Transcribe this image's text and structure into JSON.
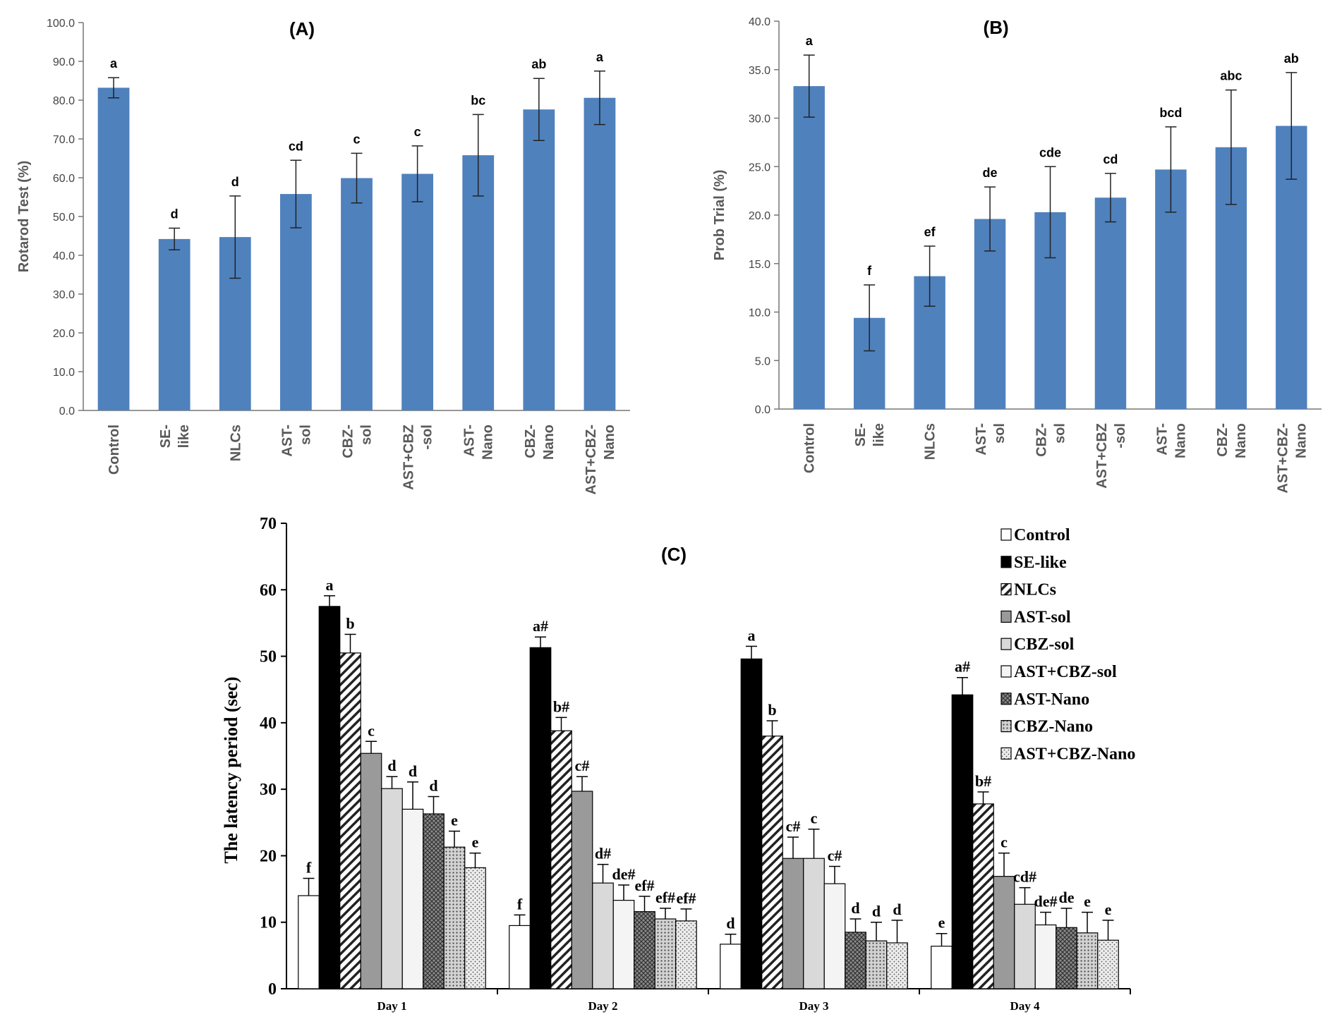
{
  "chart_data": [
    {
      "id": "A",
      "type": "bar",
      "title": "(A)",
      "xlabel": "",
      "ylabel": "Rotarod Test (%)",
      "ylim": [
        0,
        100
      ],
      "yticks": [
        "0.0",
        "10.0",
        "20.0",
        "30.0",
        "40.0",
        "50.0",
        "60.0",
        "70.0",
        "80.0",
        "90.0",
        "100.0"
      ],
      "ytick_values": [
        0,
        10,
        20,
        30,
        40,
        50,
        60,
        70,
        80,
        90,
        100
      ],
      "categories": [
        "Control",
        "SE-\nlike",
        "NLCs",
        "AST-\nsol",
        "CBZ-\nsol",
        "AST+CBZ\n-sol",
        "AST-\nNano",
        "CBZ-\nNano",
        "AST+CBZ-\nNano"
      ],
      "values": [
        83.2,
        44.2,
        44.7,
        55.8,
        59.9,
        61.0,
        65.8,
        77.6,
        80.6
      ],
      "errors": [
        2.6,
        2.8,
        10.6,
        8.7,
        6.4,
        7.2,
        10.5,
        8.0,
        6.9
      ],
      "labels": [
        "a",
        "d",
        "d",
        "cd",
        "c",
        "c",
        "bc",
        "ab",
        "a"
      ],
      "color": "#4f81bd",
      "grid": false
    },
    {
      "id": "B",
      "type": "bar",
      "title": "(B)",
      "xlabel": "",
      "ylabel": "Prob Trial (%)",
      "ylim": [
        0,
        40
      ],
      "yticks": [
        "0.0",
        "5.0",
        "10.0",
        "15.0",
        "20.0",
        "25.0",
        "30.0",
        "35.0",
        "40.0"
      ],
      "ytick_values": [
        0,
        5,
        10,
        15,
        20,
        25,
        30,
        35,
        40
      ],
      "categories": [
        "Control",
        "SE-\nlike",
        "NLCs",
        "AST-\nsol",
        "CBZ-\nsol",
        "AST+CBZ\n-sol",
        "AST-\nNano",
        "CBZ-\nNano",
        "AST+CBZ-\nNano"
      ],
      "values": [
        33.3,
        9.4,
        13.7,
        19.6,
        20.3,
        21.8,
        24.7,
        27.0,
        29.2
      ],
      "errors": [
        3.2,
        3.4,
        3.1,
        3.3,
        4.7,
        2.5,
        4.4,
        5.9,
        5.5
      ],
      "labels": [
        "a",
        "f",
        "ef",
        "de",
        "cde",
        "cd",
        "bcd",
        "abc",
        "ab"
      ],
      "color": "#4f81bd",
      "grid": false
    },
    {
      "id": "C",
      "type": "bar",
      "title": "(C)",
      "xlabel": "",
      "ylabel": "The latency period (sec)",
      "ylim": [
        0,
        70
      ],
      "yticks": [
        "0",
        "10",
        "20",
        "30",
        "40",
        "50",
        "60",
        "70"
      ],
      "ytick_values": [
        0,
        10,
        20,
        30,
        40,
        50,
        60,
        70
      ],
      "categories": [
        "Day 1",
        "Day 2",
        "Day 3",
        "Day 4"
      ],
      "legend_position": "top-right",
      "series": [
        {
          "name": "Control",
          "pattern": "white",
          "values": [
            14.0,
            9.5,
            6.7,
            6.4
          ],
          "errors": [
            2.6,
            1.6,
            1.5,
            1.9
          ],
          "labels": [
            "f",
            "f",
            "d",
            "e"
          ]
        },
        {
          "name": "SE-like",
          "pattern": "black",
          "values": [
            57.5,
            51.3,
            49.6,
            44.2
          ],
          "errors": [
            1.6,
            1.6,
            1.9,
            2.6
          ],
          "labels": [
            "a",
            "a#",
            "a",
            "a#"
          ]
        },
        {
          "name": "NLCs",
          "pattern": "diag",
          "values": [
            50.5,
            38.8,
            38.0,
            27.8
          ],
          "errors": [
            2.8,
            2.0,
            2.3,
            1.8
          ],
          "labels": [
            "b",
            "b#",
            "b",
            "b#"
          ]
        },
        {
          "name": "AST-sol",
          "pattern": "gray",
          "values": [
            35.4,
            29.7,
            19.6,
            16.9
          ],
          "errors": [
            1.8,
            2.2,
            3.2,
            3.5
          ],
          "labels": [
            "c",
            "c#",
            "c#",
            "c"
          ]
        },
        {
          "name": "CBZ-sol",
          "pattern": "lightgray",
          "values": [
            30.1,
            15.9,
            19.6,
            12.7
          ],
          "errors": [
            1.8,
            2.8,
            4.4,
            2.5
          ],
          "labels": [
            "d",
            "d#",
            "c",
            "cd#"
          ]
        },
        {
          "name": "AST+CBZ-sol",
          "pattern": "verylight",
          "values": [
            27.0,
            13.3,
            15.8,
            9.6
          ],
          "errors": [
            4.1,
            2.3,
            2.6,
            1.9
          ],
          "labels": [
            "d",
            "de#",
            "c#",
            "de#"
          ]
        },
        {
          "name": "AST-Nano",
          "pattern": "cross",
          "values": [
            26.3,
            11.6,
            8.5,
            9.2
          ],
          "errors": [
            2.6,
            2.3,
            2.0,
            2.9
          ],
          "labels": [
            "d",
            "ef#",
            "d",
            "de"
          ]
        },
        {
          "name": "CBZ-Nano",
          "pattern": "dots",
          "values": [
            21.3,
            10.5,
            7.2,
            8.4
          ],
          "errors": [
            2.4,
            1.6,
            2.8,
            3.1
          ],
          "labels": [
            "e",
            "ef#",
            "d",
            "e"
          ]
        },
        {
          "name": "AST+CBZ-Nano",
          "pattern": "finedots",
          "values": [
            18.2,
            10.2,
            6.9,
            7.3
          ],
          "errors": [
            2.2,
            1.8,
            3.4,
            3.0
          ],
          "labels": [
            "e",
            "ef#",
            "d",
            "e"
          ]
        }
      ]
    }
  ]
}
